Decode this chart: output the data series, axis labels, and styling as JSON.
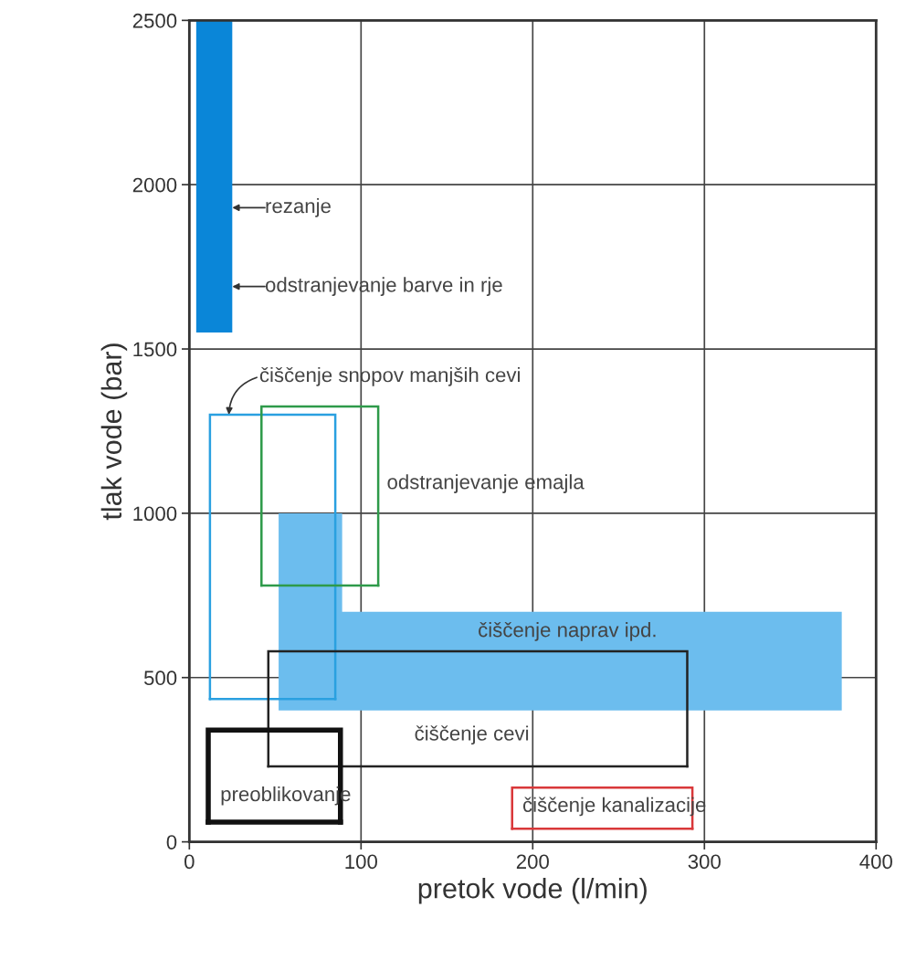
{
  "chart_data": {
    "type": "line",
    "xlabel": "pretok vode (l/min)",
    "ylabel": "tlak vode (bar)",
    "xlim": [
      0,
      400
    ],
    "ylim": [
      0,
      2500
    ],
    "xticks": [
      0,
      100,
      200,
      300,
      400
    ],
    "yticks": [
      0,
      500,
      1000,
      1500,
      2000,
      2500
    ],
    "grid": true,
    "marker": "none",
    "line_style": "solid",
    "series": [
      {
        "type": "area",
        "color": "#0a86d8",
        "x": [
          4,
          4,
          25,
          25
        ],
        "values": [
          1550,
          2500,
          2500,
          1550
        ]
      },
      {
        "type": "area",
        "color": "#6cbdee",
        "x": [
          52,
          52,
          89,
          89,
          380,
          380
        ],
        "values": [
          400,
          1000,
          1000,
          700,
          700,
          400
        ]
      },
      {
        "color": "#2aa0e0",
        "x": [
          12,
          12,
          85,
          85
        ],
        "values": [
          435,
          1300,
          1300,
          435
        ]
      },
      {
        "color": "#2aa0e0",
        "x": [
          12,
          85
        ],
        "values": [
          435,
          435
        ]
      },
      {
        "color": "#2e9a4a",
        "x": [
          42,
          42,
          110,
          110
        ],
        "values": [
          780,
          1325,
          1325,
          780
        ]
      },
      {
        "color": "#2e9a4a",
        "x": [
          42,
          110
        ],
        "values": [
          780,
          780
        ]
      },
      {
        "color": "#222222",
        "x": [
          46,
          46,
          290,
          290
        ],
        "values": [
          230,
          580,
          580,
          230
        ]
      },
      {
        "color": "#222222",
        "x": [
          46,
          290
        ],
        "values": [
          230,
          230
        ]
      },
      {
        "color": "#111111",
        "x": [
          11,
          11,
          88,
          88
        ],
        "values": [
          60,
          340,
          340,
          60
        ]
      },
      {
        "color": "#111111",
        "x": [
          11,
          88
        ],
        "values": [
          60,
          60
        ]
      },
      {
        "color": "#d9383a",
        "x": [
          188,
          188,
          293,
          293
        ],
        "values": [
          40,
          165,
          165,
          40
        ]
      },
      {
        "color": "#d9383a",
        "x": [
          188,
          293
        ],
        "values": [
          40,
          40
        ]
      }
    ],
    "annotations": [
      "rezanje",
      "odstranjevanje barve in rje",
      {
        "text": "čiščenje snopov manjših cevi",
        "x": 23,
        "y": 1300
      },
      "odstranjevanje emajla",
      "čiščenje naprav ipd.",
      "čiščenje cevi",
      "preoblikovanje",
      "čiščenje kanalizacije"
    ]
  }
}
